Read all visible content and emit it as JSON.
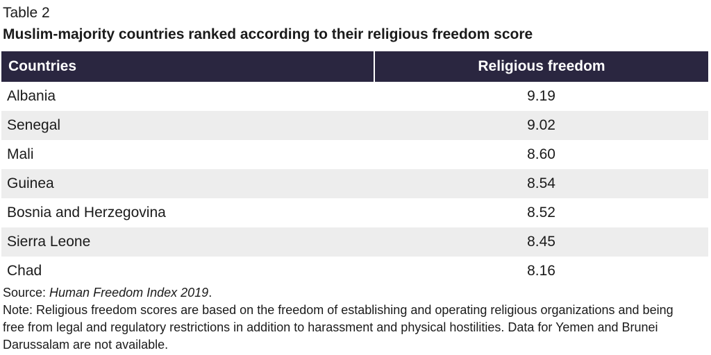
{
  "header": {
    "table_label": "Table 2",
    "title": "Muslim-majority countries ranked according to their religious freedom score"
  },
  "table": {
    "columns": [
      "Countries",
      "Religious freedom"
    ],
    "rows": [
      {
        "country": "Albania",
        "score": "9.19"
      },
      {
        "country": "Senegal",
        "score": "9.02"
      },
      {
        "country": "Mali",
        "score": "8.60"
      },
      {
        "country": "Guinea",
        "score": "8.54"
      },
      {
        "country": "Bosnia and Herzegovina",
        "score": "8.52"
      },
      {
        "country": "Sierra Leone",
        "score": "8.45"
      },
      {
        "country": "Chad",
        "score": "8.16"
      }
    ]
  },
  "footer": {
    "source_prefix": "Source: ",
    "source_title": "Human Freedom Index 2019",
    "source_suffix": ".",
    "note": "Note: Religious freedom scores are based on the freedom of establishing and operating religious organizations and being free from legal and regulatory restrictions in addition to harassment and physical hostilities. Data for Yemen and Brunei Darussalam are not available."
  },
  "colors": {
    "header_bg": "#2a2640",
    "stripe_bg": "#ededed"
  }
}
